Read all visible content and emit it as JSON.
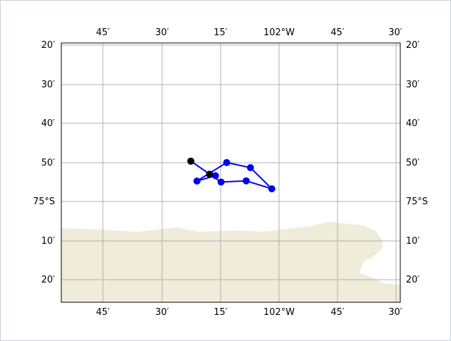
{
  "map": {
    "lon_labels": [
      "45′",
      "30′",
      "15′",
      "102°W",
      "45′",
      "30′"
    ],
    "lat_labels": [
      "20′",
      "30′",
      "40′",
      "50′",
      "75°S",
      "10′",
      "20′"
    ],
    "land_color": "#efecd9",
    "track_color": "#0000ee",
    "marker_color": "#0000ee",
    "endpoint_color": "#000000",
    "grid_color": "#b0b0b0"
  },
  "chart_data": {
    "type": "scatter",
    "track": [
      {
        "lon": -102.376,
        "lat": -74.828
      },
      {
        "lon": -102.247,
        "lat": -74.917
      },
      {
        "lon": -102.14,
        "lat": -74.912
      },
      {
        "lon": -102.031,
        "lat": -74.946
      },
      {
        "lon": -102.122,
        "lat": -74.856
      },
      {
        "lon": -102.223,
        "lat": -74.834
      },
      {
        "lon": -102.35,
        "lat": -74.913
      },
      {
        "lon": -102.271,
        "lat": -74.89
      },
      {
        "lon": -102.296,
        "lat": -74.884
      }
    ],
    "endpoints": [
      {
        "lon": -102.376,
        "lat": -74.828
      },
      {
        "lon": -102.296,
        "lat": -74.884
      }
    ]
  }
}
